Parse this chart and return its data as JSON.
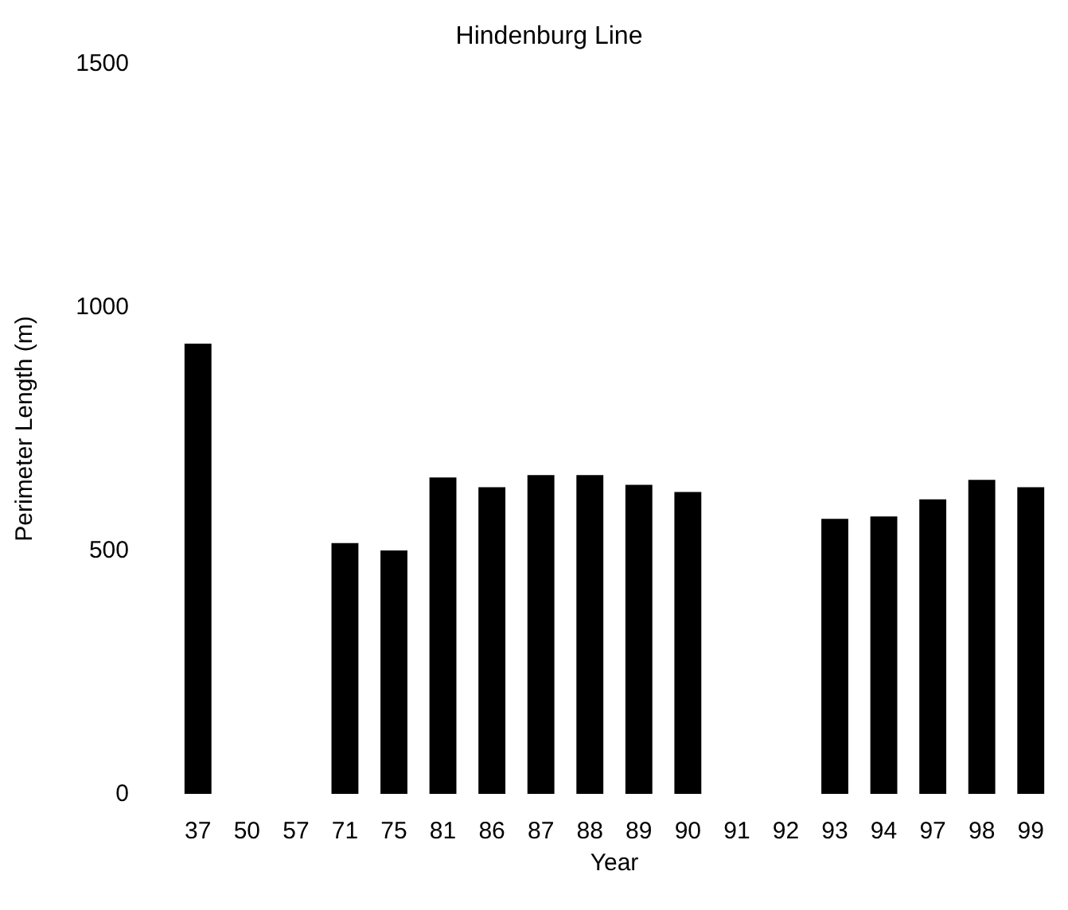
{
  "chart_data": {
    "type": "bar",
    "title": "Hindenburg Line",
    "xlabel": "Year",
    "ylabel": "Perimeter Length (m)",
    "categories": [
      "37",
      "50",
      "57",
      "71",
      "75",
      "81",
      "86",
      "87",
      "88",
      "89",
      "90",
      "91",
      "92",
      "93",
      "94",
      "97",
      "98",
      "99"
    ],
    "values": [
      925,
      null,
      null,
      515,
      500,
      650,
      630,
      655,
      655,
      635,
      620,
      null,
      null,
      565,
      570,
      605,
      645,
      630
    ],
    "color": "#000000",
    "ylim": [
      0,
      1500
    ],
    "yticks": [
      0,
      500,
      1000,
      1500
    ],
    "grid": false
  }
}
